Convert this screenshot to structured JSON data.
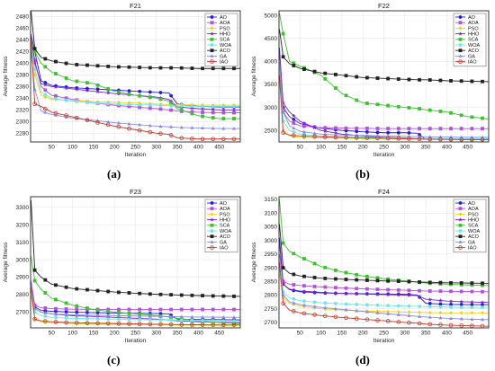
{
  "series_styles": [
    {
      "name": "AO",
      "color": "#1f1fd6",
      "marker": "circle"
    },
    {
      "name": "AOA",
      "color": "#b44fe0",
      "marker": "square"
    },
    {
      "name": "PSO",
      "color": "#f0d21a",
      "marker": "diamond"
    },
    {
      "name": "HHO",
      "color": "#7b1fd0",
      "marker": "star"
    },
    {
      "name": "SCA",
      "color": "#3cc12c",
      "marker": "square"
    },
    {
      "name": "WOA",
      "color": "#6fe6e6",
      "marker": "circle"
    },
    {
      "name": "ACO",
      "color": "#222222",
      "marker": "square"
    },
    {
      "name": "GA",
      "color": "#8a8ae8",
      "marker": "triangle"
    },
    {
      "name": "IAO",
      "color": "#c0392b",
      "marker": "circle-open"
    }
  ],
  "chart_data": [
    {
      "type": "line",
      "caption": "(a)",
      "title": "F21",
      "xlabel": "Iteration",
      "ylabel": "Average fitness",
      "xlim": [
        0,
        500
      ],
      "ylim": [
        2265,
        2490
      ],
      "xticks": [
        50,
        100,
        150,
        200,
        250,
        300,
        350,
        400,
        450
      ],
      "yticks": [
        2280,
        2300,
        2320,
        2340,
        2360,
        2380,
        2400,
        2420,
        2440,
        2460,
        2480
      ],
      "legend_position": "top-right",
      "grid": true,
      "x": [
        1,
        10,
        25,
        50,
        100,
        150,
        200,
        250,
        300,
        330,
        350,
        400,
        450,
        500
      ],
      "series": [
        {
          "name": "AO",
          "values": [
            2450,
            2420,
            2370,
            2362,
            2358,
            2356,
            2354,
            2352,
            2350,
            2349,
            2330,
            2326,
            2325,
            2325
          ]
        },
        {
          "name": "AOA",
          "values": [
            2450,
            2405,
            2360,
            2345,
            2338,
            2332,
            2328,
            2325,
            2322,
            2320,
            2318,
            2316,
            2315,
            2315
          ]
        },
        {
          "name": "PSO",
          "values": [
            2440,
            2380,
            2345,
            2338,
            2336,
            2334,
            2333,
            2332,
            2330,
            2329,
            2329,
            2328,
            2328,
            2328
          ]
        },
        {
          "name": "HHO",
          "values": [
            2448,
            2400,
            2365,
            2360,
            2356,
            2352,
            2348,
            2345,
            2342,
            2338,
            2325,
            2322,
            2320,
            2320
          ]
        },
        {
          "name": "SCA",
          "values": [
            2440,
            2420,
            2400,
            2385,
            2370,
            2365,
            2352,
            2345,
            2340,
            2335,
            2322,
            2310,
            2305,
            2305
          ]
        },
        {
          "name": "WOA",
          "values": [
            2430,
            2390,
            2350,
            2340,
            2335,
            2332,
            2330,
            2329,
            2328,
            2327,
            2327,
            2326,
            2326,
            2326
          ]
        },
        {
          "name": "ACO",
          "values": [
            2490,
            2425,
            2410,
            2404,
            2398,
            2396,
            2394,
            2393,
            2392,
            2392,
            2392,
            2391,
            2391,
            2391
          ]
        },
        {
          "name": "GA",
          "values": [
            2420,
            2355,
            2318,
            2312,
            2306,
            2302,
            2298,
            2295,
            2292,
            2291,
            2290,
            2289,
            2288,
            2288
          ]
        },
        {
          "name": "IAO",
          "values": [
            2440,
            2330,
            2326,
            2316,
            2308,
            2300,
            2292,
            2286,
            2280,
            2278,
            2272,
            2270,
            2270,
            2270
          ]
        }
      ]
    },
    {
      "type": "line",
      "caption": "(b)",
      "title": "F22",
      "xlabel": "Iteration",
      "ylabel": "Average fitness",
      "xlim": [
        0,
        500
      ],
      "ylim": [
        2250,
        5100
      ],
      "xticks": [
        50,
        100,
        150,
        200,
        250,
        300,
        350,
        400,
        450
      ],
      "yticks": [
        2500,
        3000,
        3500,
        4000,
        4500,
        5000
      ],
      "legend_position": "top-right",
      "grid": true,
      "x": [
        1,
        10,
        25,
        50,
        100,
        150,
        200,
        250,
        300,
        330,
        350,
        400,
        450,
        500
      ],
      "series": [
        {
          "name": "AO",
          "values": [
            4300,
            3000,
            2800,
            2650,
            2550,
            2500,
            2470,
            2450,
            2450,
            2440,
            2310,
            2310,
            2310,
            2310
          ]
        },
        {
          "name": "AOA",
          "values": [
            3700,
            2900,
            2700,
            2600,
            2560,
            2550,
            2545,
            2540,
            2540,
            2540,
            2540,
            2540,
            2540,
            2540
          ]
        },
        {
          "name": "PSO",
          "values": [
            3600,
            2500,
            2380,
            2350,
            2340,
            2330,
            2320,
            2315,
            2310,
            2310,
            2305,
            2305,
            2305,
            2305
          ]
        },
        {
          "name": "HHO",
          "values": [
            4200,
            3100,
            2900,
            2700,
            2500,
            2420,
            2380,
            2350,
            2340,
            2330,
            2320,
            2315,
            2310,
            2310
          ]
        },
        {
          "name": "SCA",
          "values": [
            5050,
            4600,
            4000,
            3900,
            3700,
            3300,
            3100,
            3050,
            3000,
            2980,
            2950,
            2900,
            2800,
            2750
          ]
        },
        {
          "name": "WOA",
          "values": [
            3900,
            2700,
            2500,
            2420,
            2380,
            2360,
            2350,
            2340,
            2330,
            2330,
            2325,
            2320,
            2320,
            2320
          ]
        },
        {
          "name": "ACO",
          "values": [
            4700,
            4100,
            3950,
            3850,
            3750,
            3700,
            3650,
            3630,
            3610,
            3600,
            3600,
            3580,
            3570,
            3560
          ]
        },
        {
          "name": "GA",
          "values": [
            4000,
            2900,
            2600,
            2480,
            2420,
            2400,
            2390,
            2380,
            2370,
            2365,
            2360,
            2355,
            2350,
            2350
          ]
        },
        {
          "name": "IAO",
          "values": [
            3700,
            2450,
            2400,
            2380,
            2360,
            2350,
            2340,
            2330,
            2320,
            2315,
            2310,
            2305,
            2300,
            2300
          ]
        }
      ]
    },
    {
      "type": "line",
      "caption": "(c)",
      "title": "F23",
      "xlabel": "Iteration",
      "ylabel": "Average fitness",
      "xlim": [
        0,
        500
      ],
      "ylim": [
        2610,
        3360
      ],
      "xticks": [
        50,
        100,
        150,
        200,
        250,
        300,
        350,
        400,
        450
      ],
      "yticks": [
        2700,
        2800,
        2900,
        3000,
        3100,
        3200,
        3300
      ],
      "legend_position": "top-right",
      "grid": true,
      "x": [
        1,
        10,
        25,
        50,
        100,
        150,
        200,
        250,
        300,
        330,
        350,
        400,
        450,
        500
      ],
      "series": [
        {
          "name": "AO",
          "values": [
            2860,
            2730,
            2710,
            2705,
            2700,
            2697,
            2695,
            2693,
            2692,
            2690,
            2660,
            2658,
            2657,
            2656
          ]
        },
        {
          "name": "AOA",
          "values": [
            2880,
            2740,
            2725,
            2720,
            2717,
            2716,
            2715,
            2715,
            2715,
            2715,
            2715,
            2715,
            2715,
            2715
          ]
        },
        {
          "name": "PSO",
          "values": [
            2800,
            2660,
            2645,
            2640,
            2635,
            2632,
            2630,
            2628,
            2627,
            2626,
            2625,
            2625,
            2624,
            2624
          ]
        },
        {
          "name": "HHO",
          "values": [
            2870,
            2720,
            2700,
            2690,
            2680,
            2675,
            2670,
            2665,
            2660,
            2655,
            2650,
            2645,
            2642,
            2640
          ]
        },
        {
          "name": "SCA",
          "values": [
            3020,
            2880,
            2830,
            2780,
            2740,
            2715,
            2700,
            2690,
            2680,
            2672,
            2665,
            2650,
            2640,
            2635
          ]
        },
        {
          "name": "WOA",
          "values": [
            2850,
            2700,
            2680,
            2670,
            2665,
            2662,
            2660,
            2658,
            2656,
            2655,
            2654,
            2652,
            2650,
            2650
          ]
        },
        {
          "name": "ACO",
          "values": [
            3340,
            2940,
            2900,
            2860,
            2835,
            2825,
            2815,
            2808,
            2802,
            2800,
            2798,
            2795,
            2792,
            2790
          ]
        },
        {
          "name": "GA",
          "values": [
            2860,
            2720,
            2700,
            2690,
            2685,
            2682,
            2680,
            2678,
            2676,
            2675,
            2674,
            2672,
            2671,
            2670
          ]
        },
        {
          "name": "IAO",
          "values": [
            2840,
            2660,
            2650,
            2645,
            2640,
            2637,
            2635,
            2633,
            2631,
            2630,
            2629,
            2628,
            2627,
            2627
          ]
        }
      ]
    },
    {
      "type": "line",
      "caption": "(d)",
      "title": "F24",
      "xlabel": "Iteration",
      "ylabel": "Average fitness",
      "xlim": [
        0,
        500
      ],
      "ylim": [
        2680,
        3160
      ],
      "xticks": [
        50,
        100,
        150,
        200,
        250,
        300,
        350,
        400,
        450
      ],
      "yticks": [
        2700,
        2750,
        2800,
        2850,
        2900,
        2950,
        3000,
        3050,
        3100,
        3150
      ],
      "legend_position": "top-right",
      "grid": true,
      "x": [
        1,
        10,
        25,
        50,
        100,
        150,
        200,
        250,
        300,
        330,
        350,
        400,
        450,
        500
      ],
      "series": [
        {
          "name": "AO",
          "values": [
            3010,
            2840,
            2820,
            2812,
            2808,
            2806,
            2805,
            2804,
            2803,
            2800,
            2770,
            2766,
            2765,
            2765
          ]
        },
        {
          "name": "AOA",
          "values": [
            2950,
            2850,
            2840,
            2835,
            2830,
            2826,
            2823,
            2820,
            2818,
            2816,
            2815,
            2814,
            2813,
            2812
          ]
        },
        {
          "name": "PSO",
          "values": [
            2880,
            2790,
            2770,
            2760,
            2750,
            2745,
            2742,
            2740,
            2738,
            2737,
            2736,
            2735,
            2735,
            2735
          ]
        },
        {
          "name": "HHO",
          "values": [
            2990,
            2840,
            2822,
            2815,
            2810,
            2806,
            2804,
            2802,
            2800,
            2798,
            2785,
            2778,
            2775,
            2773
          ]
        },
        {
          "name": "SCA",
          "values": [
            3150,
            2990,
            2960,
            2940,
            2905,
            2885,
            2870,
            2860,
            2852,
            2848,
            2844,
            2840,
            2837,
            2835
          ]
        },
        {
          "name": "WOA",
          "values": [
            2930,
            2810,
            2790,
            2780,
            2772,
            2768,
            2765,
            2762,
            2760,
            2759,
            2758,
            2756,
            2755,
            2755
          ]
        },
        {
          "name": "ACO",
          "values": [
            3060,
            2900,
            2880,
            2870,
            2862,
            2858,
            2855,
            2852,
            2850,
            2848,
            2847,
            2845,
            2844,
            2843
          ]
        },
        {
          "name": "GA",
          "values": [
            2900,
            2800,
            2775,
            2765,
            2755,
            2748,
            2740,
            2733,
            2726,
            2722,
            2720,
            2715,
            2712,
            2710
          ]
        },
        {
          "name": "IAO",
          "values": [
            2920,
            2770,
            2745,
            2735,
            2725,
            2718,
            2712,
            2706,
            2700,
            2697,
            2694,
            2690,
            2688,
            2686
          ]
        }
      ]
    }
  ]
}
